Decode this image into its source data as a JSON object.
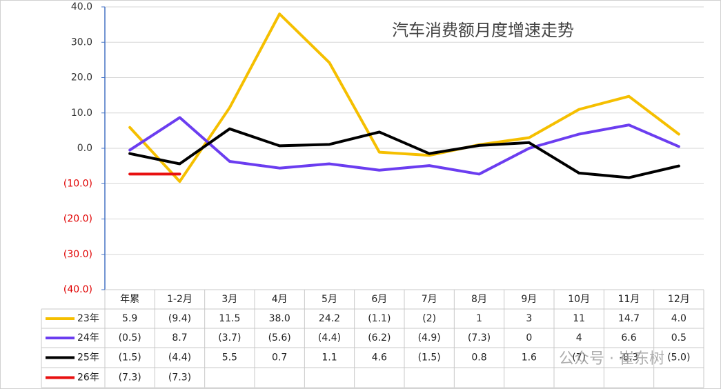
{
  "chart_data": {
    "type": "line",
    "title": "汽车消费额月度增速走势",
    "categories": [
      "年累",
      "1-2月",
      "3月",
      "4月",
      "5月",
      "6月",
      "7月",
      "8月",
      "9月",
      "10月",
      "11月",
      "12月"
    ],
    "series": [
      {
        "name": "23年",
        "color": "#f5bf00",
        "values": [
          5.9,
          -9.4,
          11.5,
          38.0,
          24.2,
          -1.1,
          -2,
          1,
          3,
          11,
          14.7,
          4.0
        ],
        "value_labels": [
          "5.9",
          "(9.4)",
          "11.5",
          "38.0",
          "24.2",
          "(1.1)",
          "(2)",
          "1",
          "3",
          "11",
          "14.7",
          "4.0"
        ]
      },
      {
        "name": "24年",
        "color": "#6b3df0",
        "values": [
          -0.5,
          8.7,
          -3.7,
          -5.6,
          -4.4,
          -6.2,
          -4.9,
          -7.3,
          0,
          4,
          6.6,
          0.5
        ],
        "value_labels": [
          "(0.5)",
          "8.7",
          "(3.7)",
          "(5.6)",
          "(4.4)",
          "(6.2)",
          "(4.9)",
          "(7.3)",
          "0",
          "4",
          "6.6",
          "0.5"
        ]
      },
      {
        "name": "25年",
        "color": "#000000",
        "values": [
          -1.5,
          -4.4,
          5.5,
          0.7,
          1.1,
          4.6,
          -1.5,
          0.8,
          1.6,
          -7,
          -8.3,
          -5.0
        ],
        "value_labels": [
          "(1.5)",
          "(4.4)",
          "5.5",
          "0.7",
          "1.1",
          "4.6",
          "(1.5)",
          "0.8",
          "1.6",
          "(7)",
          "-8.3",
          "(5.0)"
        ]
      },
      {
        "name": "26年",
        "color": "#e81010",
        "values": [
          -7.3,
          -7.3,
          null,
          null,
          null,
          null,
          null,
          null,
          null,
          null,
          null,
          null
        ],
        "value_labels": [
          "(7.3)",
          "(7.3)",
          null,
          null,
          null,
          null,
          null,
          null,
          null,
          null,
          null,
          null
        ]
      }
    ],
    "ylim": [
      -40,
      40
    ],
    "yticks": [
      {
        "value": -40,
        "label": "(40.0)"
      },
      {
        "value": -30,
        "label": "(30.0)"
      },
      {
        "value": -20,
        "label": "(20.0)"
      },
      {
        "value": -10,
        "label": "(10.0)"
      },
      {
        "value": 0,
        "label": "0.0"
      },
      {
        "value": 10,
        "label": "10.0"
      },
      {
        "value": 20,
        "label": "20.0"
      },
      {
        "value": 30,
        "label": "30.0"
      },
      {
        "value": 40,
        "label": "40.0"
      }
    ],
    "negative_tick_color": "#e00000",
    "grid": true,
    "watermark": "公众号 · 崔东树"
  }
}
